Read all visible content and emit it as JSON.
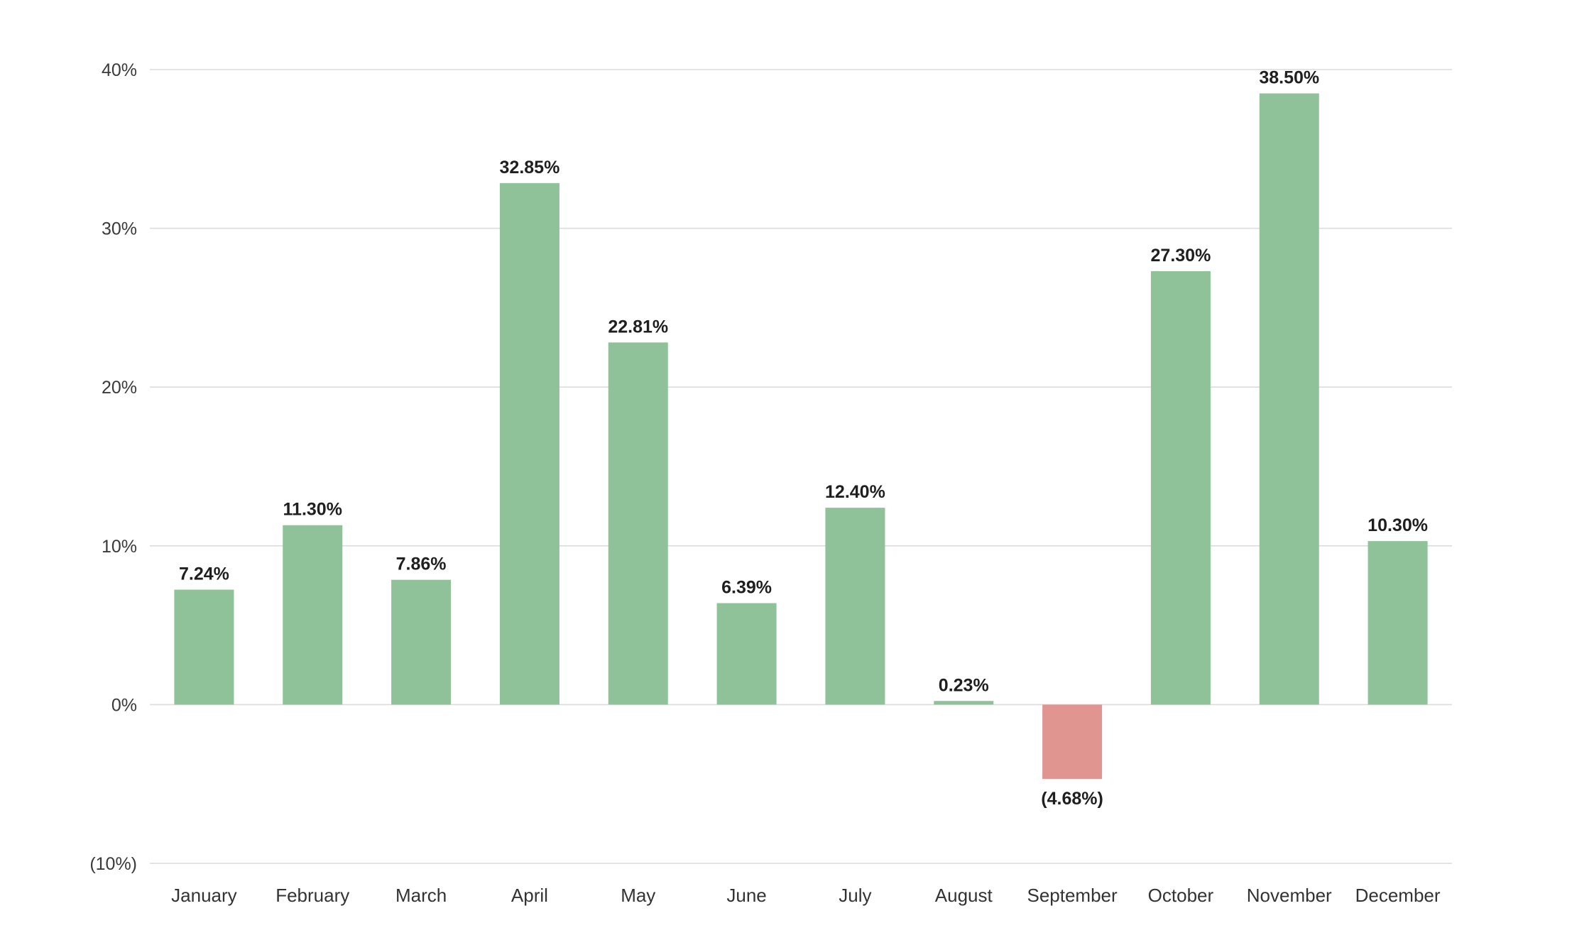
{
  "chart_data": {
    "type": "bar",
    "title": "",
    "xlabel": "",
    "ylabel": "",
    "ylim": [
      -10,
      40
    ],
    "yticks": [
      {
        "value": 40,
        "label": "40%"
      },
      {
        "value": 30,
        "label": "30%"
      },
      {
        "value": 20,
        "label": "20%"
      },
      {
        "value": 10,
        "label": "10%"
      },
      {
        "value": 0,
        "label": "0%"
      },
      {
        "value": -10,
        "label": "(10%)"
      }
    ],
    "grid": true,
    "categories": [
      "January",
      "February",
      "March",
      "April",
      "May",
      "June",
      "July",
      "August",
      "September",
      "October",
      "November",
      "December"
    ],
    "values": [
      7.24,
      11.3,
      7.86,
      32.85,
      22.81,
      6.39,
      12.4,
      0.23,
      -4.68,
      27.3,
      38.5,
      10.3
    ],
    "data_labels": [
      "7.24%",
      "11.30%",
      "7.86%",
      "32.85%",
      "22.81%",
      "6.39%",
      "12.40%",
      "0.23%",
      "(4.68%)",
      "27.30%",
      "38.50%",
      "10.30%"
    ],
    "colors": {
      "positive": "#8fc298",
      "negative": "#e09591",
      "grid": "#dcdcdc"
    }
  }
}
